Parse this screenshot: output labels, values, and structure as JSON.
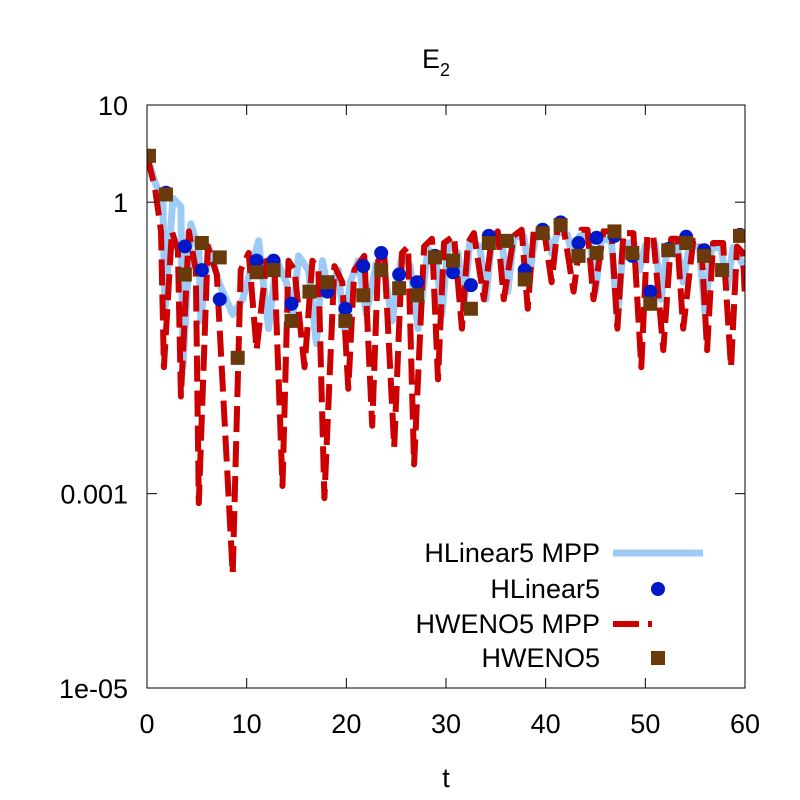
{
  "chart_data": {
    "type": "line",
    "title": "E",
    "title_subscript": "2",
    "xlabel": "t",
    "ylabel": "",
    "xlim": [
      0,
      60
    ],
    "ylim": [
      1e-05,
      10
    ],
    "yscale": "log",
    "x_ticks": [
      0,
      10,
      20,
      30,
      40,
      50,
      60
    ],
    "x_tick_labels": [
      "0",
      "10",
      "20",
      "30",
      "40",
      "50",
      "60"
    ],
    "y_ticks": [
      10,
      1,
      0.001,
      1e-05
    ],
    "y_tick_labels": [
      "10",
      "1",
      "0.001",
      "1e-05"
    ],
    "grid": false,
    "legend_position": "bottom-right",
    "colors": {
      "hlinear5_mpp": "#9dcbf5",
      "hlinear5": "#0019c8",
      "hweno5_mpp": "#cc0000",
      "hweno5": "#6a3a0a"
    },
    "series": [
      {
        "name": "HLinear5 MPP",
        "style": "line",
        "x": [
          0,
          0.8,
          1.6,
          1.8,
          2.6,
          3.4,
          3.6,
          4.4,
          5.2,
          5.4,
          6.2,
          7.2,
          8.6,
          9.6,
          10.4,
          11.2,
          12.2,
          13.0,
          14.0,
          14.6,
          15.2,
          16.2,
          17.0,
          17.6,
          18.2,
          19.2,
          19.8,
          20.4,
          21.2,
          22.0,
          23.0,
          23.8,
          24.6,
          25.6,
          26.4,
          27.2,
          28.2,
          29.0,
          29.6,
          30.2,
          31.2,
          31.8,
          32.4,
          33.4,
          34.0,
          34.6,
          35.6,
          36.2,
          36.8,
          37.8,
          38.4,
          39.0,
          40.0,
          40.6,
          41.2,
          42.2,
          42.8,
          43.4,
          44.4,
          45.0,
          45.6,
          46.6,
          47.2,
          47.8,
          48.8,
          49.4,
          50.0,
          51.0,
          51.6,
          52.2,
          53.2,
          53.8,
          54.4,
          55.4,
          56.0,
          56.6,
          57.6,
          58.2,
          58.8,
          59.6,
          60
        ],
        "y": [
          3,
          1.6,
          1.0,
          0.08,
          1.1,
          0.9,
          0.02,
          0.6,
          0.32,
          0.06,
          0.35,
          0.15,
          0.07,
          0.1,
          0.2,
          0.4,
          0.05,
          0.25,
          0.15,
          0.06,
          0.28,
          0.2,
          0.035,
          0.25,
          0.12,
          0.2,
          0.05,
          0.15,
          0.25,
          0.07,
          0.23,
          0.2,
          0.06,
          0.3,
          0.22,
          0.05,
          0.33,
          0.26,
          0.07,
          0.38,
          0.3,
          0.08,
          0.4,
          0.35,
          0.1,
          0.42,
          0.4,
          0.12,
          0.44,
          0.45,
          0.18,
          0.47,
          0.5,
          0.3,
          0.5,
          0.46,
          0.25,
          0.45,
          0.45,
          0.12,
          0.42,
          0.4,
          0.06,
          0.38,
          0.38,
          0.2,
          0.36,
          0.37,
          0.1,
          0.35,
          0.36,
          0.15,
          0.35,
          0.35,
          0.07,
          0.33,
          0.35,
          0.13,
          0.34,
          0.25,
          0.2
        ]
      },
      {
        "name": "HLinear5",
        "style": "markers",
        "marker": "circle",
        "x": [
          0.2,
          1.9,
          3.8,
          5.5,
          7.3,
          9.1,
          11.0,
          12.7,
          14.5,
          16.3,
          18.1,
          19.9,
          21.7,
          23.5,
          25.3,
          27.1,
          28.9,
          30.7,
          32.5,
          34.3,
          36.1,
          37.9,
          39.7,
          41.5,
          43.3,
          45.1,
          46.9,
          48.7,
          50.5,
          52.3,
          54.1,
          55.9,
          57.7,
          59.5
        ],
        "y": [
          3,
          1.25,
          0.35,
          0.2,
          0.1,
          0.025,
          0.25,
          0.25,
          0.09,
          0.12,
          0.12,
          0.08,
          0.22,
          0.3,
          0.18,
          0.15,
          0.28,
          0.19,
          0.14,
          0.45,
          0.4,
          0.2,
          0.52,
          0.62,
          0.38,
          0.43,
          0.45,
          0.28,
          0.12,
          0.33,
          0.44,
          0.32,
          0.2,
          0.46
        ]
      },
      {
        "name": "HWENO5 MPP",
        "style": "line",
        "x": [
          0,
          0.8,
          1.4,
          1.7,
          2.5,
          3.1,
          3.4,
          4.2,
          4.9,
          5.2,
          6.1,
          7.0,
          8.6,
          9.4,
          10.2,
          11.0,
          12.0,
          12.8,
          13.6,
          14.2,
          14.8,
          15.8,
          16.6,
          17.2,
          17.8,
          18.8,
          19.6,
          20.2,
          20.8,
          21.8,
          22.6,
          23.2,
          23.8,
          24.8,
          25.6,
          26.2,
          26.8,
          27.8,
          28.6,
          29.2,
          29.8,
          30.8,
          31.6,
          32.2,
          32.8,
          33.8,
          34.6,
          35.2,
          35.8,
          36.8,
          37.6,
          38.2,
          38.8,
          39.8,
          40.6,
          41.2,
          41.8,
          42.8,
          43.6,
          44.2,
          44.8,
          45.8,
          46.6,
          47.2,
          47.8,
          48.8,
          49.6,
          50.2,
          50.8,
          51.8,
          52.6,
          53.2,
          53.8,
          54.8,
          55.6,
          56.2,
          56.8,
          57.8,
          58.6,
          59.2,
          59.8,
          60
        ],
        "y": [
          3,
          1.4,
          0.5,
          0.02,
          0.5,
          0.32,
          0.01,
          0.5,
          0.2,
          0.0008,
          0.35,
          0.18,
          0.00015,
          0.2,
          0.3,
          0.03,
          0.25,
          0.2,
          0.0012,
          0.25,
          0.2,
          0.02,
          0.25,
          0.2,
          0.0009,
          0.22,
          0.15,
          0.012,
          0.2,
          0.28,
          0.005,
          0.25,
          0.3,
          0.003,
          0.3,
          0.35,
          0.002,
          0.35,
          0.42,
          0.015,
          0.38,
          0.45,
          0.05,
          0.38,
          0.48,
          0.1,
          0.42,
          0.5,
          0.1,
          0.45,
          0.52,
          0.08,
          0.5,
          0.55,
          0.15,
          0.55,
          0.55,
          0.12,
          0.52,
          0.52,
          0.1,
          0.5,
          0.5,
          0.05,
          0.48,
          0.48,
          0.02,
          0.45,
          0.45,
          0.03,
          0.42,
          0.42,
          0.05,
          0.4,
          0.4,
          0.03,
          0.38,
          0.38,
          0.02,
          0.35,
          0.3,
          0.1
        ]
      },
      {
        "name": "HWENO5",
        "style": "markers",
        "marker": "square",
        "x": [
          0.2,
          1.9,
          3.8,
          5.5,
          7.3,
          9.1,
          11.0,
          12.7,
          14.5,
          16.3,
          18.1,
          19.9,
          21.7,
          23.5,
          25.3,
          27.1,
          28.9,
          30.7,
          32.5,
          34.3,
          36.1,
          37.9,
          39.7,
          41.5,
          43.3,
          45.1,
          46.9,
          48.7,
          50.5,
          52.3,
          54.1,
          55.9,
          57.7,
          59.5
        ],
        "y": [
          3,
          1.2,
          0.18,
          0.38,
          0.27,
          0.025,
          0.19,
          0.2,
          0.06,
          0.12,
          0.15,
          0.06,
          0.11,
          0.2,
          0.13,
          0.11,
          0.27,
          0.25,
          0.08,
          0.38,
          0.4,
          0.16,
          0.48,
          0.58,
          0.28,
          0.3,
          0.5,
          0.3,
          0.09,
          0.32,
          0.38,
          0.28,
          0.2,
          0.45
        ]
      }
    ]
  }
}
